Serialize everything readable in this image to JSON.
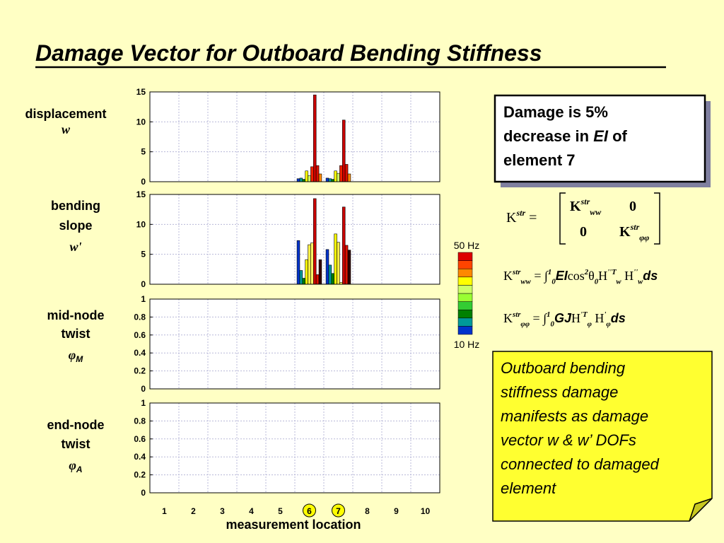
{
  "title": "Damage Vector for Outboard Bending Stiffness",
  "chart_data": [
    {
      "type": "bar",
      "ylabel": [
        "displacement"
      ],
      "ylabel_symbol": "w",
      "ylim": [
        0,
        15
      ],
      "yticks": [
        0,
        5,
        10,
        15
      ],
      "grid": true,
      "series": [
        {
          "color": "#0033cc",
          "values": [
            0,
            0,
            0,
            0,
            0,
            0.5,
            0.6,
            0,
            0,
            0
          ]
        },
        {
          "color": "#009999",
          "values": [
            0,
            0,
            0,
            0,
            0,
            0.6,
            0.5,
            0,
            0,
            0
          ]
        },
        {
          "color": "#008000",
          "values": [
            0,
            0,
            0,
            0,
            0,
            0.4,
            0.4,
            0,
            0,
            0
          ]
        },
        {
          "color": "#ffff00",
          "values": [
            0,
            0,
            0,
            0,
            0,
            1.8,
            1.8,
            0,
            0,
            0
          ]
        },
        {
          "color": "#ccff66",
          "values": [
            0,
            0,
            0,
            0,
            0,
            1.0,
            1.4,
            0,
            0,
            0
          ]
        },
        {
          "color": "#ee2200",
          "values": [
            0,
            0,
            0,
            0,
            0,
            2.5,
            2.7,
            0,
            0,
            0
          ]
        },
        {
          "color": "#cc0000",
          "values": [
            0,
            0,
            0,
            0,
            0,
            14.5,
            10.3,
            0,
            0,
            0
          ]
        },
        {
          "color": "#dd1100",
          "values": [
            0,
            0,
            0,
            0,
            0,
            2.7,
            2.9,
            0,
            0,
            0
          ]
        },
        {
          "color": "#ff8800",
          "values": [
            0,
            0,
            0,
            0,
            0,
            1.3,
            1.3,
            0,
            0,
            0
          ]
        }
      ]
    },
    {
      "type": "bar",
      "ylabel": [
        "bending",
        "slope"
      ],
      "ylabel_symbol": "w'",
      "ylim": [
        0,
        15
      ],
      "yticks": [
        0,
        5,
        10,
        15
      ],
      "grid": true,
      "series": [
        {
          "color": "#0033cc",
          "values": [
            0,
            0,
            0,
            0,
            0,
            7.3,
            5.8,
            0,
            0,
            0
          ]
        },
        {
          "color": "#009999",
          "values": [
            0,
            0,
            0,
            0,
            0,
            2.3,
            3.2,
            0,
            0,
            0
          ]
        },
        {
          "color": "#008000",
          "values": [
            0,
            0,
            0,
            0,
            0,
            1.0,
            1.8,
            0,
            0,
            0
          ]
        },
        {
          "color": "#ffff00",
          "values": [
            0,
            0,
            0,
            0,
            0,
            4.1,
            8.4,
            0,
            0,
            0
          ]
        },
        {
          "color": "#ffee44",
          "values": [
            0,
            0,
            0,
            0,
            0,
            6.6,
            7.0,
            0,
            0,
            0
          ]
        },
        {
          "color": "#ffff66",
          "values": [
            0,
            0,
            0,
            0,
            0,
            6.9,
            0.3,
            0,
            0,
            0
          ]
        },
        {
          "color": "#cc0000",
          "values": [
            0,
            0,
            0,
            0,
            0,
            14.3,
            12.9,
            0,
            0,
            0
          ]
        },
        {
          "color": "#dd1100",
          "values": [
            0,
            0,
            0,
            0,
            0,
            1.6,
            6.5,
            0,
            0,
            0
          ]
        },
        {
          "color": "#300000",
          "values": [
            0,
            0,
            0,
            0,
            0,
            4.1,
            5.7,
            0,
            0,
            0
          ]
        }
      ]
    },
    {
      "type": "bar",
      "ylabel": [
        "mid-node",
        "twist"
      ],
      "ylabel_symbol": "φ",
      "ylabel_subscript": "M",
      "ylim": [
        0,
        1
      ],
      "yticks": [
        0,
        0.2,
        0.4,
        0.6,
        0.8,
        1
      ],
      "grid": true,
      "series": [
        {
          "color": "#808080",
          "values": [
            0,
            0,
            0,
            0,
            0,
            0,
            0,
            0,
            0,
            0
          ]
        }
      ]
    },
    {
      "type": "bar",
      "ylabel": [
        "end-node",
        "twist"
      ],
      "ylabel_symbol": "φ",
      "ylabel_subscript": "A",
      "ylim": [
        0,
        1
      ],
      "yticks": [
        0,
        0.2,
        0.4,
        0.6,
        0.8,
        1
      ],
      "grid": true,
      "categories": [
        "1",
        "2",
        "3",
        "4",
        "5",
        "6",
        "7",
        "8",
        "9",
        "10"
      ],
      "highlighted": [
        "6",
        "7"
      ],
      "xlabel": "measurement location",
      "series": [
        {
          "color": "#808080",
          "values": [
            0,
            0,
            0,
            0,
            0,
            0,
            0,
            0,
            0,
            0
          ]
        }
      ]
    }
  ],
  "colorbar": {
    "top_label": "50 Hz",
    "bottom_label": "10 Hz",
    "colors": [
      "#0033cc",
      "#009999",
      "#008000",
      "#33cc33",
      "#99ff33",
      "#ccff66",
      "#ffff00",
      "#ff8800",
      "#ff4400",
      "#dd0000"
    ]
  },
  "damage_box": [
    [
      {
        "t": "Damage is 5%"
      }
    ],
    [
      {
        "t": "decrease in "
      },
      {
        "t": "EI",
        "s": "it"
      },
      {
        "t": " of"
      }
    ],
    [
      {
        "t": "element 7"
      }
    ]
  ],
  "matrix": {
    "lhs": [
      {
        "t": "K"
      },
      {
        "t": "str",
        "s": "sup"
      },
      {
        "t": "  ="
      }
    ],
    "cells": [
      [
        {
          "t": "K"
        },
        {
          "t": "str",
          "s": "sup"
        },
        {
          "t": "ww",
          "s": "sub"
        }
      ],
      [
        {
          "t": "0"
        }
      ],
      [
        {
          "t": "0"
        }
      ],
      [
        {
          "t": "K"
        },
        {
          "t": "str",
          "s": "sup"
        },
        {
          "t": "φφ",
          "s": "sub"
        }
      ]
    ]
  },
  "equations": [
    [
      {
        "t": "K"
      },
      {
        "t": "str",
        "s": "sup"
      },
      {
        "t": "ww",
        "s": "sub"
      },
      {
        "t": " = "
      },
      {
        "t": "∫"
      },
      {
        "t": "1",
        "s": "sup"
      },
      {
        "t": "0",
        "s": "sub"
      },
      {
        "t": "EI",
        "s": "it"
      },
      {
        "t": "cos"
      },
      {
        "t": "2",
        "s": "sup"
      },
      {
        "t": "θ"
      },
      {
        "t": "0",
        "s": "sub"
      },
      {
        "t": "H"
      },
      {
        "t": "''T",
        "s": "sup"
      },
      {
        "t": "w",
        "s": "sub"
      },
      {
        "t": " H"
      },
      {
        "t": "''",
        "s": "sup"
      },
      {
        "t": "w",
        "s": "sub"
      },
      {
        "t": "ds",
        "s": "it"
      }
    ],
    [
      {
        "t": "K"
      },
      {
        "t": "str",
        "s": "sup"
      },
      {
        "t": "φφ",
        "s": "sub"
      },
      {
        "t": " = "
      },
      {
        "t": "∫"
      },
      {
        "t": "1",
        "s": "sup"
      },
      {
        "t": "0",
        "s": "sub"
      },
      {
        "t": "GJ",
        "s": "it"
      },
      {
        "t": "H"
      },
      {
        "t": "'T",
        "s": "sup"
      },
      {
        "t": "φ",
        "s": "sub"
      },
      {
        "t": " H"
      },
      {
        "t": "'",
        "s": "sup"
      },
      {
        "t": "φ",
        "s": "sub"
      },
      {
        "t": "ds",
        "s": "it"
      }
    ]
  ],
  "note": [
    "Outboard bending",
    "stiffness damage",
    "manifests as damage",
    "vector w & w’ DOFs",
    "connected to damaged",
    "element"
  ]
}
